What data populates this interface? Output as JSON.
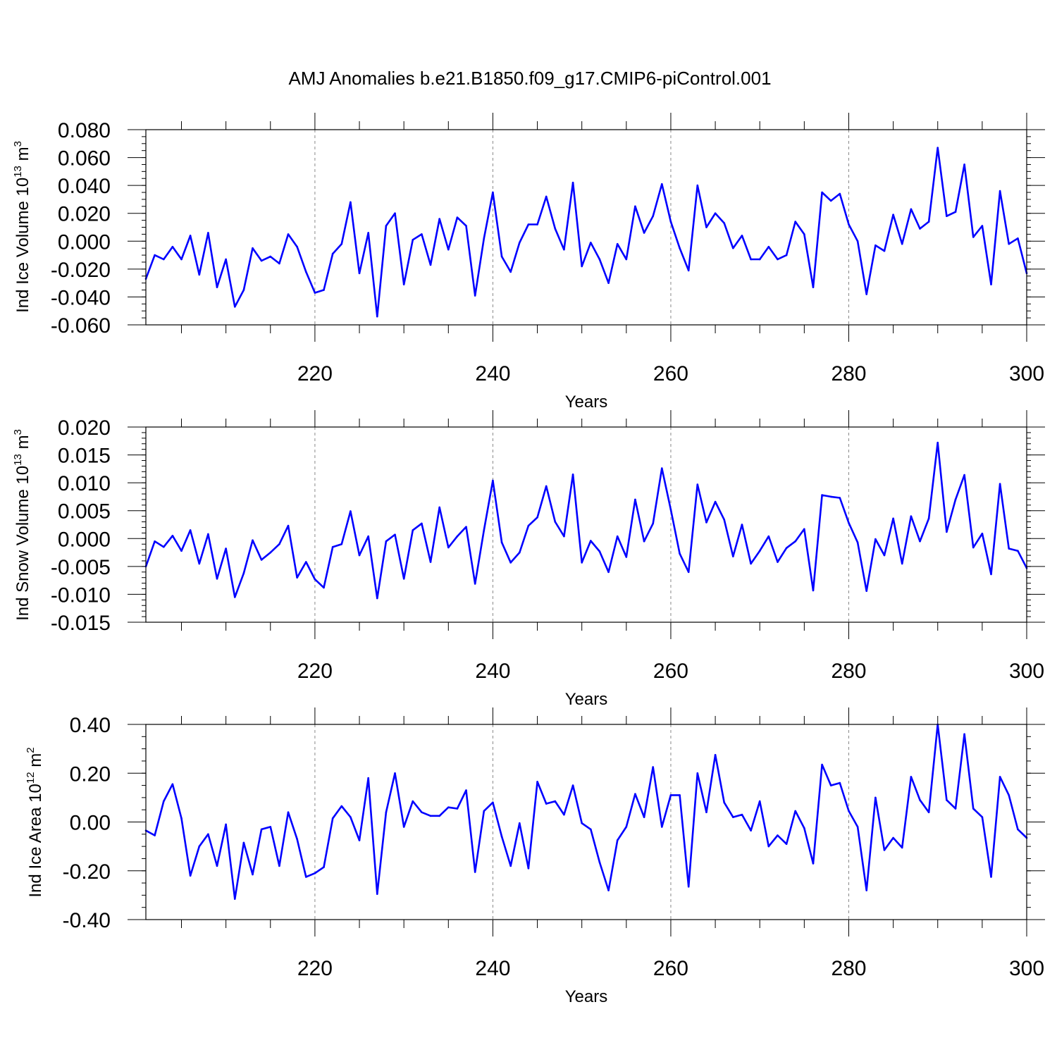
{
  "title": "AMJ Anomalies b.e21.B1850.f09_g17.CMIP6-piControl.001",
  "line_color": "#0000ff",
  "chart_data": [
    {
      "type": "line",
      "name": "ind-ice-volume",
      "ylabel": {
        "main": "Ind Ice Volume 10",
        "exp": "13",
        "mid": " m",
        "unit_exp": "3"
      },
      "xlabel": "Years",
      "xlim": [
        201,
        300
      ],
      "ylim": [
        -0.06,
        0.08
      ],
      "xticks": [
        220,
        240,
        260,
        280,
        300
      ],
      "xtick_labels": [
        "220",
        "240",
        "260",
        "280",
        "300"
      ],
      "yticks": [
        -0.06,
        -0.04,
        -0.02,
        0.0,
        0.02,
        0.04,
        0.06,
        0.08
      ],
      "ytick_labels": [
        "-0.060",
        "-0.040",
        "-0.020",
        "0.000",
        "0.020",
        "0.040",
        "0.060",
        "0.080"
      ],
      "ygrid_minor_step": 0.005,
      "x_start": 201,
      "values": [
        -0.027,
        -0.01,
        -0.013,
        -0.004,
        -0.013,
        0.004,
        -0.024,
        0.006,
        -0.033,
        -0.013,
        -0.047,
        -0.035,
        -0.005,
        -0.014,
        -0.011,
        -0.016,
        0.005,
        -0.004,
        -0.022,
        -0.037,
        -0.035,
        -0.009,
        -0.002,
        0.028,
        -0.023,
        0.006,
        -0.054,
        0.011,
        0.02,
        -0.031,
        0.001,
        0.005,
        -0.017,
        0.016,
        -0.006,
        0.017,
        0.011,
        -0.039,
        0.002,
        0.035,
        -0.011,
        -0.022,
        -0.001,
        0.012,
        0.012,
        0.032,
        0.009,
        -0.006,
        0.042,
        -0.018,
        -0.001,
        -0.013,
        -0.03,
        -0.002,
        -0.013,
        0.025,
        0.006,
        0.018,
        0.041,
        0.014,
        -0.005,
        -0.021,
        0.04,
        0.01,
        0.02,
        0.013,
        -0.005,
        0.004,
        -0.013,
        -0.013,
        -0.004,
        -0.013,
        -0.01,
        0.014,
        0.005,
        -0.033,
        0.035,
        0.029,
        0.034,
        0.012,
        0.0,
        -0.038,
        -0.003,
        -0.007,
        0.019,
        -0.002,
        0.023,
        0.009,
        0.014,
        0.067,
        0.018,
        0.021,
        0.055,
        0.003,
        0.011,
        -0.031,
        0.036,
        -0.002,
        0.002,
        -0.023
      ]
    },
    {
      "type": "line",
      "name": "ind-snow-volume",
      "ylabel": {
        "main": "Ind Snow Volume 10",
        "exp": "13",
        "mid": " m",
        "unit_exp": "3"
      },
      "xlabel": "Years",
      "xlim": [
        201,
        300
      ],
      "ylim": [
        -0.015,
        0.02
      ],
      "xticks": [
        220,
        240,
        260,
        280,
        300
      ],
      "xtick_labels": [
        "220",
        "240",
        "260",
        "280",
        "300"
      ],
      "yticks": [
        -0.015,
        -0.01,
        -0.005,
        0.0,
        0.005,
        0.01,
        0.015,
        0.02
      ],
      "ytick_labels": [
        "-0.015",
        "-0.010",
        "-0.005",
        "0.000",
        "0.005",
        "0.010",
        "0.015",
        "0.020"
      ],
      "ygrid_minor_step": 0.001,
      "x_start": 201,
      "values": [
        -0.005,
        -0.0005,
        -0.0015,
        0.0005,
        -0.0022,
        0.0015,
        -0.0045,
        0.0008,
        -0.0072,
        -0.0018,
        -0.0105,
        -0.0062,
        -0.0003,
        -0.0038,
        -0.0025,
        -0.001,
        0.0023,
        -0.007,
        -0.0042,
        -0.0073,
        -0.0088,
        -0.0015,
        -0.001,
        0.0049,
        -0.003,
        0.0004,
        -0.0107,
        -0.0005,
        0.0007,
        -0.0072,
        0.0015,
        0.0027,
        -0.0042,
        0.0056,
        -0.0016,
        0.0004,
        0.0021,
        -0.0081,
        0.0015,
        0.0104,
        -0.0007,
        -0.0043,
        -0.0025,
        0.0023,
        0.0038,
        0.0094,
        0.003,
        0.0004,
        0.0115,
        -0.0043,
        -0.0004,
        -0.0023,
        -0.006,
        0.0004,
        -0.0033,
        0.007,
        -0.0005,
        0.0027,
        0.0126,
        0.0052,
        -0.0027,
        -0.006,
        0.0097,
        0.0029,
        0.0066,
        0.0034,
        -0.0032,
        0.0025,
        -0.0045,
        -0.0022,
        0.0004,
        -0.0042,
        -0.0017,
        -0.0005,
        0.0017,
        -0.0093,
        0.0078,
        0.0075,
        0.0073,
        0.0028,
        -0.0007,
        -0.0094,
        -0.0001,
        -0.003,
        0.0036,
        -0.0045,
        0.004,
        -0.0005,
        0.0036,
        0.0172,
        0.0012,
        0.007,
        0.0114,
        -0.0016,
        0.0009,
        -0.0064,
        0.0098,
        -0.0018,
        -0.0022,
        -0.0053
      ]
    },
    {
      "type": "line",
      "name": "ind-ice-area",
      "ylabel": {
        "main": "Ind Ice Area 10",
        "exp": "12",
        "mid": " m",
        "unit_exp": "2"
      },
      "xlabel": "Years",
      "xlim": [
        201,
        300
      ],
      "ylim": [
        -0.4,
        0.4
      ],
      "xticks": [
        220,
        240,
        260,
        280,
        300
      ],
      "xtick_labels": [
        "220",
        "240",
        "260",
        "280",
        "300"
      ],
      "yticks": [
        -0.4,
        -0.2,
        0.0,
        0.2,
        0.4
      ],
      "ytick_labels": [
        "-0.40",
        "-0.20",
        "0.00",
        "0.20",
        "0.40"
      ],
      "ygrid_minor_step": 0.05,
      "x_start": 201,
      "values": [
        -0.035,
        -0.055,
        0.085,
        0.155,
        0.015,
        -0.22,
        -0.1,
        -0.05,
        -0.18,
        -0.01,
        -0.315,
        -0.085,
        -0.215,
        -0.03,
        -0.02,
        -0.18,
        0.04,
        -0.07,
        -0.225,
        -0.21,
        -0.185,
        0.015,
        0.065,
        0.02,
        -0.075,
        0.18,
        -0.295,
        0.04,
        0.2,
        -0.02,
        0.085,
        0.04,
        0.025,
        0.025,
        0.06,
        0.055,
        0.13,
        -0.205,
        0.045,
        0.08,
        -0.06,
        -0.18,
        -0.005,
        -0.19,
        0.165,
        0.075,
        0.085,
        0.03,
        0.15,
        -0.005,
        -0.03,
        -0.165,
        -0.28,
        -0.075,
        -0.02,
        0.115,
        0.02,
        0.225,
        -0.02,
        0.11,
        0.11,
        -0.265,
        0.2,
        0.04,
        0.275,
        0.08,
        0.02,
        0.03,
        -0.035,
        0.085,
        -0.1,
        -0.055,
        -0.09,
        0.045,
        -0.025,
        -0.17,
        0.235,
        0.15,
        0.16,
        0.045,
        -0.02,
        -0.28,
        0.1,
        -0.115,
        -0.065,
        -0.105,
        0.185,
        0.09,
        0.04,
        0.4,
        0.09,
        0.055,
        0.36,
        0.055,
        0.02,
        -0.225,
        0.185,
        0.11,
        -0.03,
        -0.065
      ]
    }
  ]
}
